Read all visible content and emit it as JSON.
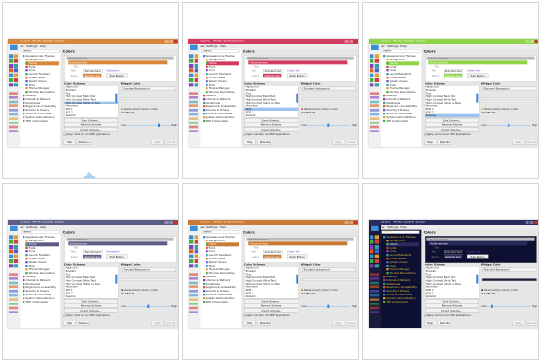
{
  "window": {
    "title": "Colors - Trinity Control Center",
    "menu": [
      "File",
      "View",
      "Settings",
      "Help"
    ],
    "search_label": "Search:",
    "tree": [
      {
        "label": "Appearance & Themes",
        "level": 0
      },
      {
        "label": "Background",
        "level": 1
      },
      {
        "label": "Colors",
        "level": 1,
        "selected": true
      },
      {
        "label": "Fonts",
        "level": 1
      },
      {
        "label": "Icons",
        "level": 1
      },
      {
        "label": "Launch Feedback",
        "level": 1
      },
      {
        "label": "Screen Saver",
        "level": 1
      },
      {
        "label": "Splash Screen",
        "level": 1
      },
      {
        "label": "Style",
        "level": 1
      },
      {
        "label": "Theme Manager",
        "level": 1
      },
      {
        "label": "Window Decorations",
        "level": 1
      },
      {
        "label": "Desktop",
        "level": 0
      },
      {
        "label": "Internet & Network",
        "level": 0
      },
      {
        "label": "Peripherals",
        "level": 0
      },
      {
        "label": "Regional & Accessibility",
        "level": 0
      },
      {
        "label": "Security & Privacy",
        "level": 0
      },
      {
        "label": "Sound & Multimedia",
        "level": 0
      },
      {
        "label": "System Administration",
        "level": 0
      },
      {
        "label": "TDE Components",
        "level": 0
      }
    ],
    "header": "Colors",
    "preview": {
      "inactive": "Inactive window",
      "active": "Active window",
      "title": "Title",
      "text_label": "Text",
      "standard_text": "Standard text",
      "link": "link",
      "visited_link": "Visited link",
      "selected_label": "Select",
      "selected_text": "Selected text",
      "push_button": "Push Button"
    },
    "color_scheme_label": "Color Scheme",
    "schemes": [
      "Aqua Crud",
      "Emerald",
      "Flux",
      "High Contrast Black Text",
      "High Contrast White Text",
      "High Contrast Yellow on Blue",
      "Honorium",
      "KDE 1",
      "KDE 2",
      "Keramik",
      "Keramik Emerald",
      "Keramik White"
    ],
    "save_scheme": "Save Scheme...",
    "remove_scheme": "Remove Scheme",
    "import_scheme": "Import Scheme...",
    "widget_color_label": "Widget Color",
    "widget_color_value": "Standard Background",
    "shade_sorted": "Shade sorted column in lists",
    "contrast_label": "Contrast",
    "low": "Low",
    "high": "High",
    "apply_non_tde": "Apply colors to non-TDE applications",
    "help": "Help",
    "defaults": "Defaults",
    "apply": "Apply",
    "cancel": "Cancel"
  },
  "thumbnails": [
    {
      "accent": "#d8873a",
      "tree_bg": "#ffffff",
      "tree_fg": "#222222",
      "preview_bg": "#ffffff",
      "selected_scheme": 5,
      "contrast": 0.75
    },
    {
      "accent": "#d23c5f",
      "tree_bg": "#ffffff",
      "tree_fg": "#222222",
      "preview_bg": "#ffffff",
      "selected_scheme": 7,
      "contrast": 0.5
    },
    {
      "accent": "#8fd448",
      "tree_bg": "#ffffff",
      "tree_fg": "#222222",
      "preview_bg": "#ffffff",
      "selected_scheme": 9,
      "contrast": 0.5
    },
    {
      "accent": "#5c5c86",
      "tree_bg": "#ffffff",
      "tree_fg": "#222222",
      "preview_bg": "#ffffff",
      "selected_scheme": 11,
      "contrast": 0.5
    },
    {
      "accent": "#c97a34",
      "tree_bg": "#ffffff",
      "tree_fg": "#222222",
      "preview_bg": "#ffffff",
      "selected_scheme": 10,
      "contrast": 0.5
    },
    {
      "accent": "#2a2a5c",
      "tree_bg": "#0d1030",
      "tree_fg": "#e0c040",
      "preview_bg": "#0d1030",
      "selected_scheme": 11,
      "contrast": 0.1
    }
  ],
  "indicator_color": "#a9d3f5"
}
